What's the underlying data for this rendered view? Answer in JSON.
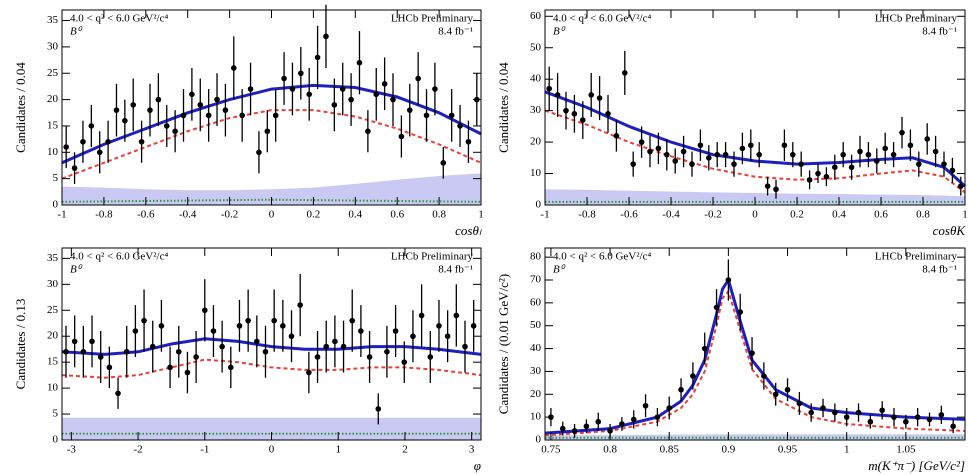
{
  "chart_data": [
    {
      "type": "errorbar",
      "ylabel": "Candidates / 0.04",
      "xlabel": "cosθₗ",
      "selection": "4.0 < q² < 6.0 GeV²/c⁴",
      "particle": "B⁰",
      "experiment": "LHCb Preliminary",
      "luminosity": "8.4 fb⁻¹",
      "xlim": [
        -1,
        1
      ],
      "ylim": [
        0,
        37
      ],
      "xticks": [
        -1,
        -0.8,
        -0.6,
        -0.4,
        -0.2,
        0,
        0.2,
        0.4,
        0.6,
        0.8,
        1
      ],
      "yticks": [
        0,
        5,
        10,
        15,
        20,
        25,
        30,
        35
      ],
      "color": "#000000",
      "x": [
        -0.98,
        -0.94,
        -0.9,
        -0.86,
        -0.82,
        -0.78,
        -0.74,
        -0.7,
        -0.66,
        -0.62,
        -0.58,
        -0.54,
        -0.5,
        -0.46,
        -0.42,
        -0.38,
        -0.34,
        -0.3,
        -0.26,
        -0.22,
        -0.18,
        -0.14,
        -0.1,
        -0.06,
        -0.02,
        0.02,
        0.06,
        0.1,
        0.14,
        0.18,
        0.22,
        0.26,
        0.3,
        0.34,
        0.38,
        0.42,
        0.46,
        0.5,
        0.54,
        0.58,
        0.62,
        0.66,
        0.7,
        0.74,
        0.78,
        0.82,
        0.86,
        0.9,
        0.94,
        0.98
      ],
      "values": [
        11,
        7,
        12,
        15,
        10,
        12,
        18,
        16,
        19,
        12,
        18,
        20,
        15,
        14,
        17,
        21,
        19,
        17,
        20,
        18,
        26,
        17,
        22,
        10,
        14,
        17,
        24,
        22,
        25,
        21,
        28,
        32,
        19,
        22,
        20,
        27,
        14,
        21,
        23,
        20,
        13,
        18,
        24,
        17,
        22,
        8,
        17,
        15,
        12,
        20
      ],
      "errors": [
        4,
        3,
        4,
        4,
        4,
        4,
        5,
        4,
        5,
        4,
        5,
        5,
        4,
        4,
        5,
        5,
        5,
        5,
        5,
        5,
        6,
        5,
        5,
        4,
        4,
        5,
        5,
        5,
        5,
        5,
        6,
        6,
        5,
        5,
        5,
        6,
        4,
        5,
        5,
        5,
        4,
        5,
        5,
        5,
        5,
        3,
        5,
        4,
        4,
        5
      ],
      "curves": [
        {
          "style": "band",
          "color": "#c9c9f4",
          "x": [
            -1,
            -0.8,
            -0.6,
            -0.4,
            -0.2,
            0,
            0.2,
            0.4,
            0.6,
            0.8,
            1
          ],
          "values": [
            3.5,
            3.3,
            3,
            2.8,
            2.8,
            3,
            3.3,
            4,
            4.8,
            5.5,
            6
          ]
        },
        {
          "style": "dotted",
          "color": "#2a9a3a",
          "x": [
            -1,
            -0.5,
            0,
            0.5,
            1
          ],
          "values": [
            0.6,
            0.8,
            1,
            0.8,
            0.6
          ]
        },
        {
          "style": "dashed",
          "color": "#e8403a",
          "x": [
            -1,
            -0.8,
            -0.6,
            -0.4,
            -0.2,
            0,
            0.2,
            0.4,
            0.6,
            0.8,
            1
          ],
          "values": [
            5,
            8,
            11,
            14,
            16.5,
            18,
            18,
            16.8,
            14.5,
            11.5,
            8
          ]
        },
        {
          "style": "solid",
          "color": "#1f1fc0",
          "x": [
            -1,
            -0.8,
            -0.6,
            -0.4,
            -0.2,
            0,
            0.2,
            0.4,
            0.6,
            0.8,
            1
          ],
          "values": [
            8,
            11.5,
            14.5,
            17.5,
            20,
            22,
            22.7,
            22.3,
            20.5,
            17.5,
            13.5
          ]
        }
      ]
    },
    {
      "type": "errorbar",
      "ylabel": "Candidates / 0.04",
      "xlabel": "cosθK",
      "selection": "4.0 < q² < 6.0 GeV²/c⁴",
      "particle": "B⁰",
      "experiment": "LHCb Preliminary",
      "luminosity": "8.4 fb⁻¹",
      "xlim": [
        -1,
        1
      ],
      "ylim": [
        0,
        62
      ],
      "xticks": [
        -1,
        -0.8,
        -0.6,
        -0.4,
        -0.2,
        0,
        0.2,
        0.4,
        0.6,
        0.8,
        1
      ],
      "yticks": [
        0,
        10,
        20,
        30,
        40,
        50,
        60
      ],
      "color": "#000000",
      "x": [
        -0.98,
        -0.94,
        -0.9,
        -0.86,
        -0.82,
        -0.78,
        -0.74,
        -0.7,
        -0.66,
        -0.62,
        -0.58,
        -0.54,
        -0.5,
        -0.46,
        -0.42,
        -0.38,
        -0.34,
        -0.3,
        -0.26,
        -0.22,
        -0.18,
        -0.14,
        -0.1,
        -0.06,
        -0.02,
        0.02,
        0.06,
        0.1,
        0.14,
        0.18,
        0.22,
        0.26,
        0.3,
        0.34,
        0.38,
        0.42,
        0.46,
        0.5,
        0.54,
        0.58,
        0.62,
        0.66,
        0.7,
        0.74,
        0.78,
        0.82,
        0.86,
        0.9,
        0.94,
        0.98
      ],
      "values": [
        37,
        35,
        30,
        29,
        27,
        35,
        34,
        29,
        22,
        42,
        13,
        20,
        17,
        18,
        16,
        14,
        17,
        13,
        19,
        15,
        16,
        16,
        13,
        18,
        19,
        16,
        6,
        5,
        19,
        16,
        13,
        8,
        10,
        9,
        12,
        16,
        12,
        17,
        16,
        14,
        18,
        16,
        23,
        19,
        13,
        21,
        17,
        13,
        11,
        6
      ],
      "errors": [
        7,
        7,
        6,
        6,
        6,
        7,
        7,
        6,
        5,
        7,
        4,
        5,
        5,
        5,
        5,
        4,
        5,
        4,
        5,
        4,
        4,
        4,
        4,
        5,
        5,
        4,
        3,
        3,
        5,
        4,
        4,
        3,
        3,
        3,
        4,
        4,
        4,
        5,
        4,
        4,
        5,
        4,
        5,
        5,
        4,
        5,
        5,
        4,
        4,
        3
      ],
      "curves": [
        {
          "style": "band",
          "color": "#c9c9f4",
          "x": [
            -1,
            -0.8,
            -0.6,
            -0.4,
            -0.2,
            0,
            0.2,
            0.4,
            0.6,
            0.75,
            0.9,
            1
          ],
          "values": [
            5,
            4.8,
            4.5,
            4.3,
            4,
            3.8,
            3.6,
            3.5,
            3.3,
            3.2,
            3,
            2.8
          ]
        },
        {
          "style": "dotted",
          "color": "#2a9a3a",
          "x": [
            -1,
            0,
            1
          ],
          "values": [
            1,
            1,
            1
          ]
        },
        {
          "style": "dashed",
          "color": "#e8403a",
          "x": [
            -1,
            -0.8,
            -0.6,
            -0.4,
            -0.2,
            0,
            0.2,
            0.4,
            0.6,
            0.75,
            0.9,
            1
          ],
          "values": [
            30,
            25.5,
            20,
            15.5,
            11.5,
            9,
            8,
            8.5,
            10,
            11,
            9,
            4
          ]
        },
        {
          "style": "solid",
          "color": "#1f1fc0",
          "x": [
            -1,
            -0.8,
            -0.6,
            -0.4,
            -0.2,
            0,
            0.2,
            0.4,
            0.6,
            0.75,
            0.9,
            1
          ],
          "values": [
            36,
            31,
            25,
            20,
            16,
            14,
            13,
            13.5,
            14.5,
            15,
            12,
            6
          ]
        }
      ]
    },
    {
      "type": "errorbar",
      "ylabel": "Candidates / 0.13",
      "xlabel": "φ",
      "selection": "4.0 < q² < 6.0 GeV²/c⁴",
      "particle": "B⁰",
      "experiment": "LHCb Preliminary",
      "luminosity": "8.4 fb⁻¹",
      "xlim": [
        -3.14,
        3.14
      ],
      "ylim": [
        0,
        37
      ],
      "xticks": [
        -3,
        -2,
        -1,
        0,
        1,
        2,
        3
      ],
      "yticks": [
        0,
        5,
        10,
        15,
        20,
        25,
        30,
        35
      ],
      "color": "#000000",
      "x": [
        -3.08,
        -2.95,
        -2.82,
        -2.69,
        -2.56,
        -2.43,
        -2.3,
        -2.17,
        -2.04,
        -1.91,
        -1.78,
        -1.65,
        -1.52,
        -1.39,
        -1.26,
        -1.13,
        -1,
        -0.87,
        -0.74,
        -0.61,
        -0.48,
        -0.35,
        -0.22,
        -0.09,
        0.04,
        0.17,
        0.3,
        0.43,
        0.56,
        0.69,
        0.82,
        0.95,
        1.08,
        1.21,
        1.34,
        1.47,
        1.6,
        1.73,
        1.86,
        1.99,
        2.12,
        2.25,
        2.38,
        2.51,
        2.64,
        2.77,
        2.9,
        3.03
      ],
      "values": [
        17,
        19,
        17,
        19,
        16,
        14,
        9,
        17,
        21,
        23,
        18,
        22,
        14,
        17,
        13,
        16,
        25,
        21,
        18,
        14,
        22,
        23,
        19,
        17,
        23,
        22,
        20,
        26,
        13,
        16,
        18,
        19,
        18,
        23,
        21,
        16,
        6,
        17,
        21,
        15,
        20,
        24,
        16,
        22,
        20,
        24,
        18,
        22
      ],
      "errors": [
        5,
        5,
        5,
        5,
        5,
        4,
        3,
        5,
        5,
        6,
        5,
        5,
        4,
        5,
        4,
        5,
        6,
        5,
        5,
        4,
        5,
        6,
        5,
        5,
        6,
        5,
        5,
        6,
        4,
        5,
        5,
        5,
        5,
        6,
        5,
        5,
        3,
        5,
        5,
        4,
        5,
        6,
        5,
        5,
        5,
        6,
        5,
        5
      ],
      "curves": [
        {
          "style": "band",
          "color": "#c9c9f4",
          "x": [
            -3.14,
            0,
            3.14
          ],
          "values": [
            4.3,
            4.3,
            4.3
          ]
        },
        {
          "style": "dotted",
          "color": "#2a9a3a",
          "x": [
            -3.14,
            0,
            3.14
          ],
          "values": [
            1.2,
            1.2,
            1.2
          ]
        },
        {
          "style": "dashed",
          "color": "#e8403a",
          "x": [
            -3.14,
            -2.5,
            -2,
            -1.5,
            -1,
            -0.5,
            0,
            0.5,
            1,
            1.5,
            2,
            2.5,
            3.14
          ],
          "values": [
            12.5,
            12,
            12.5,
            14,
            15.5,
            15,
            14,
            13.5,
            13.5,
            14,
            14,
            13.5,
            12.5
          ]
        },
        {
          "style": "solid",
          "color": "#1f1fc0",
          "x": [
            -3.14,
            -2.5,
            -2,
            -1.5,
            -1,
            -0.5,
            0,
            0.5,
            1,
            1.5,
            2,
            2.5,
            3.14
          ],
          "values": [
            17,
            16.5,
            17,
            18.5,
            19.5,
            19,
            18,
            17.5,
            17.5,
            18,
            18,
            17.5,
            16.5
          ]
        }
      ]
    },
    {
      "type": "errorbar",
      "ylabel": "Candidates / (0.01 GeV/c²)",
      "xlabel": "m(K⁺π⁻) [GeV/c²]",
      "selection": "4.0 < q² < 6.0 GeV²/c⁴",
      "particle": "B⁰",
      "experiment": "LHCb Preliminary",
      "luminosity": "8.4 fb⁻¹",
      "xlim": [
        0.745,
        1.1
      ],
      "ylim": [
        0,
        84
      ],
      "xticks": [
        0.75,
        0.8,
        0.85,
        0.9,
        0.95,
        1,
        1.05
      ],
      "yticks": [
        0,
        10,
        20,
        30,
        40,
        50,
        60,
        70,
        80
      ],
      "color": "#000000",
      "x": [
        0.75,
        0.76,
        0.77,
        0.78,
        0.79,
        0.8,
        0.81,
        0.82,
        0.83,
        0.84,
        0.85,
        0.86,
        0.87,
        0.88,
        0.89,
        0.9,
        0.91,
        0.92,
        0.93,
        0.94,
        0.95,
        0.96,
        0.97,
        0.98,
        0.99,
        1,
        1.01,
        1.02,
        1.03,
        1.04,
        1.05,
        1.06,
        1.07,
        1.08,
        1.09
      ],
      "values": [
        10,
        5,
        4,
        6,
        8,
        4,
        7,
        9,
        15,
        10,
        14,
        22,
        28,
        40,
        58,
        70,
        56,
        38,
        28,
        20,
        22,
        16,
        12,
        14,
        12,
        10,
        12,
        8,
        13,
        10,
        8,
        10,
        9,
        11,
        6
      ],
      "errors": [
        4,
        3,
        3,
        3,
        4,
        3,
        3,
        4,
        5,
        4,
        5,
        5,
        6,
        7,
        8,
        9,
        8,
        7,
        6,
        5,
        5,
        5,
        4,
        4,
        4,
        4,
        4,
        3,
        4,
        4,
        3,
        4,
        3,
        4,
        3
      ],
      "curves": [
        {
          "style": "band",
          "color": "#c9c9f4",
          "x": [
            0.745,
            0.9,
            1.1
          ],
          "values": [
            2,
            2.5,
            2.5
          ]
        },
        {
          "style": "dotted",
          "color": "#2a9a3a",
          "x": [
            0.745,
            0.9,
            1.1
          ],
          "values": [
            1,
            1,
            1
          ]
        },
        {
          "style": "dashed",
          "color": "#e8403a",
          "x": [
            0.745,
            0.8,
            0.84,
            0.86,
            0.87,
            0.88,
            0.89,
            0.895,
            0.9,
            0.91,
            0.92,
            0.94,
            0.97,
            1,
            1.05,
            1.1
          ],
          "values": [
            2,
            4,
            8,
            14,
            20,
            30,
            50,
            62,
            65,
            48,
            31,
            18,
            10,
            7,
            5,
            4
          ]
        },
        {
          "style": "solid",
          "color": "#1f1fc0",
          "x": [
            0.745,
            0.8,
            0.84,
            0.86,
            0.87,
            0.88,
            0.89,
            0.895,
            0.9,
            0.91,
            0.92,
            0.94,
            0.97,
            1,
            1.05,
            1.1
          ],
          "values": [
            3,
            5,
            10,
            17,
            24,
            35,
            55,
            66,
            70,
            52,
            35,
            22,
            14,
            12,
            10,
            9
          ]
        }
      ]
    }
  ]
}
